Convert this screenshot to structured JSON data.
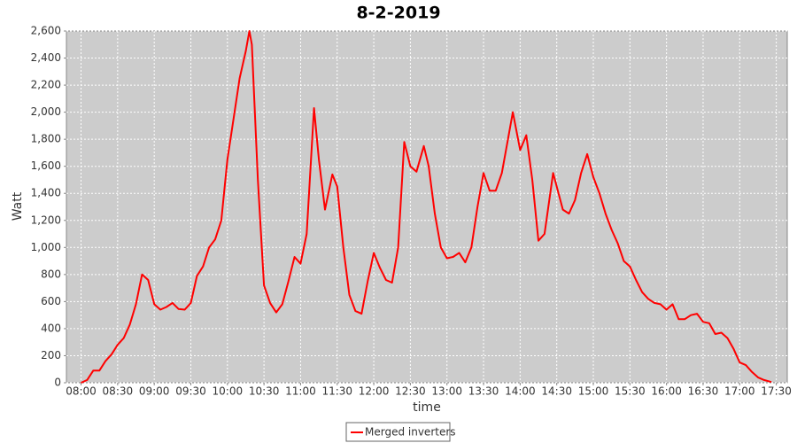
{
  "chart_data": {
    "type": "line",
    "title": "8-2-2019",
    "x_label": "time",
    "y_label": "Watt",
    "x": [
      "08:00",
      "08:05",
      "08:10",
      "08:15",
      "08:20",
      "08:25",
      "08:30",
      "08:35",
      "08:40",
      "08:45",
      "08:50",
      "08:55",
      "09:00",
      "09:05",
      "09:10",
      "09:15",
      "09:20",
      "09:25",
      "09:30",
      "09:35",
      "09:40",
      "09:45",
      "09:50",
      "09:55",
      "10:00",
      "10:05",
      "10:10",
      "10:15",
      "10:18",
      "10:20",
      "10:25",
      "10:30",
      "10:35",
      "10:40",
      "10:45",
      "10:50",
      "10:55",
      "11:00",
      "11:05",
      "11:11",
      "11:15",
      "11:20",
      "11:26",
      "11:30",
      "11:35",
      "11:40",
      "11:45",
      "11:50",
      "11:55",
      "12:00",
      "12:05",
      "12:10",
      "12:15",
      "12:20",
      "12:25",
      "12:30",
      "12:35",
      "12:41",
      "12:45",
      "12:50",
      "12:55",
      "13:00",
      "13:05",
      "13:10",
      "13:15",
      "13:20",
      "13:25",
      "13:30",
      "13:35",
      "13:40",
      "13:45",
      "13:50",
      "13:54",
      "14:00",
      "14:05",
      "14:10",
      "14:15",
      "14:20",
      "14:27",
      "14:30",
      "14:35",
      "14:40",
      "14:45",
      "14:50",
      "14:55",
      "15:00",
      "15:05",
      "15:10",
      "15:15",
      "15:20",
      "15:25",
      "15:30",
      "15:35",
      "15:40",
      "15:45",
      "15:50",
      "15:55",
      "16:00",
      "16:05",
      "16:10",
      "16:15",
      "16:20",
      "16:25",
      "16:30",
      "16:35",
      "16:40",
      "16:45",
      "16:50",
      "16:55",
      "17:00",
      "17:05",
      "17:10",
      "17:15",
      "17:20",
      "17:26"
    ],
    "series": [
      {
        "name": "Merged inverters",
        "color": "#ff0000",
        "values": [
          0,
          20,
          90,
          90,
          160,
          210,
          280,
          330,
          430,
          580,
          800,
          760,
          580,
          540,
          560,
          590,
          545,
          540,
          590,
          790,
          860,
          1000,
          1060,
          1200,
          1650,
          1950,
          2250,
          2450,
          2600,
          2500,
          1500,
          720,
          590,
          520,
          580,
          750,
          930,
          880,
          1100,
          2030,
          1650,
          1280,
          1540,
          1450,
          1000,
          650,
          530,
          510,
          750,
          960,
          850,
          760,
          740,
          1000,
          1780,
          1600,
          1560,
          1750,
          1600,
          1250,
          1000,
          920,
          930,
          960,
          890,
          1000,
          1300,
          1550,
          1420,
          1420,
          1550,
          1800,
          2000,
          1720,
          1830,
          1500,
          1050,
          1100,
          1550,
          1450,
          1280,
          1250,
          1350,
          1550,
          1690,
          1520,
          1400,
          1250,
          1130,
          1030,
          900,
          860,
          760,
          670,
          620,
          590,
          580,
          540,
          580,
          470,
          470,
          500,
          510,
          450,
          440,
          360,
          370,
          330,
          250,
          150,
          130,
          80,
          40,
          20,
          5
        ]
      }
    ],
    "xlim": [
      "07:48",
      "17:39"
    ],
    "xticks": [
      "08:00",
      "08:30",
      "09:00",
      "09:30",
      "10:00",
      "10:30",
      "11:00",
      "11:30",
      "12:00",
      "12:30",
      "13:00",
      "13:30",
      "14:00",
      "14:30",
      "15:00",
      "15:30",
      "16:00",
      "16:30",
      "17:00",
      "17:30"
    ],
    "ylim": [
      0,
      2600
    ],
    "yticks": [
      0,
      200,
      400,
      600,
      800,
      {
        "value": 1000,
        "label": "1,000"
      },
      {
        "value": 1200,
        "label": "1,200"
      },
      {
        "value": 1400,
        "label": "1,400"
      },
      {
        "value": 1600,
        "label": "1,600"
      },
      {
        "value": 1800,
        "label": "1,800"
      },
      {
        "value": 2000,
        "label": "2,000"
      },
      {
        "value": 2200,
        "label": "2,200"
      },
      {
        "value": 2400,
        "label": "2,400"
      },
      {
        "value": 2600,
        "label": "2,600"
      }
    ],
    "grid": true
  }
}
